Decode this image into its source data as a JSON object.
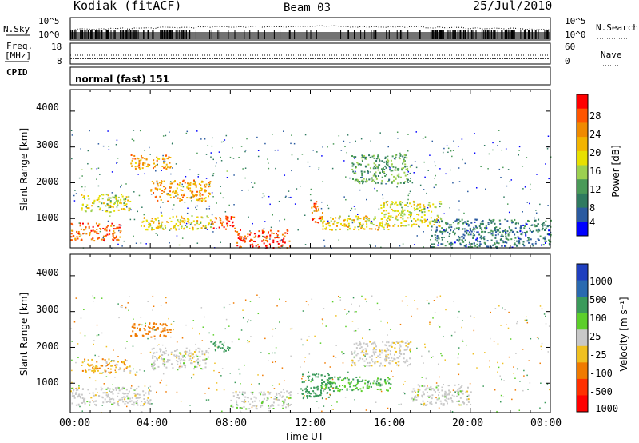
{
  "header": {
    "station": "Kodiak (fitACF)",
    "beam": "Beam 03",
    "date": "25/Jul/2010"
  },
  "status": {
    "nsky_label": "N.Sky",
    "nsky_ticks": [
      "10^5",
      "10^0"
    ],
    "nsearch_label": "N.Search",
    "nsearch_ticks": [
      "10^5",
      "10^0"
    ],
    "freq_label_1": "Freq.",
    "freq_label_2": "[MHz]",
    "freq_ticks": [
      "18",
      "8"
    ],
    "nave_label": "Nave",
    "nave_ticks": [
      "60",
      "0"
    ],
    "cpid_label": "CPID",
    "cpid_value": "normal (fast) 151"
  },
  "axes": {
    "x_ticks": [
      "00:00",
      "04:00",
      "08:00",
      "12:00",
      "16:00",
      "20:00",
      "00:00"
    ],
    "x_label": "Time UT",
    "y_label": "Slant Range [km]",
    "y_ticks": [
      "4000",
      "3000",
      "2000",
      "1000"
    ]
  },
  "power_colorbar": {
    "label": "Power [dB]",
    "ticks": [
      "28",
      "24",
      "20",
      "16",
      "12",
      "8",
      "4"
    ],
    "colors": [
      "#ff0000",
      "#ff5500",
      "#f08a00",
      "#f2b400",
      "#e8e000",
      "#9cd050",
      "#4a9a58",
      "#2f7a60",
      "#2a5aa0",
      "#0000ff"
    ]
  },
  "velocity_colorbar": {
    "label": "Velocity [m s⁻¹]",
    "ticks": [
      "1000",
      "500",
      "100",
      "25",
      "-25",
      "-100",
      "-500",
      "-1000"
    ],
    "colors": [
      "#1f3fbf",
      "#2a6ab0",
      "#3a9a5a",
      "#5ccf2a",
      "#c8c8c8",
      "#f0c020",
      "#f07a00",
      "#ff3000",
      "#ff0000"
    ]
  },
  "chart_data": [
    {
      "type": "heatmap",
      "title": "Power",
      "xlabel": "Time UT",
      "ylabel": "Slant Range [km]",
      "xlim": [
        0,
        24
      ],
      "ylim": [
        180,
        4600
      ],
      "zlabel": "Power [dB]",
      "zlim": [
        0,
        30
      ],
      "blobs": [
        {
          "t": [
            0.0,
            2.5
          ],
          "r": [
            400,
            900
          ],
          "p": 26
        },
        {
          "t": [
            0.5,
            3.0
          ],
          "r": [
            1200,
            1700
          ],
          "p": 16
        },
        {
          "t": [
            3.0,
            5.0
          ],
          "r": [
            2400,
            2800
          ],
          "p": 22
        },
        {
          "t": [
            4.0,
            7.0
          ],
          "r": [
            1500,
            2100
          ],
          "p": 22
        },
        {
          "t": [
            3.5,
            7.0
          ],
          "r": [
            700,
            1100
          ],
          "p": 18
        },
        {
          "t": [
            7.0,
            8.2
          ],
          "r": [
            700,
            1100
          ],
          "p": 26
        },
        {
          "t": [
            8.2,
            11.0
          ],
          "r": [
            200,
            700
          ],
          "p": 28
        },
        {
          "t": [
            12.0,
            12.6
          ],
          "r": [
            900,
            1500
          ],
          "p": 26
        },
        {
          "t": [
            12.5,
            16.0
          ],
          "r": [
            700,
            1100
          ],
          "p": 18
        },
        {
          "t": [
            14.0,
            17.0
          ],
          "r": [
            2000,
            2800
          ],
          "p": 10
        },
        {
          "t": [
            15.5,
            18.5
          ],
          "r": [
            800,
            1500
          ],
          "p": 16
        },
        {
          "t": [
            18.0,
            24.0
          ],
          "r": [
            200,
            1000
          ],
          "p": 6
        }
      ]
    },
    {
      "type": "heatmap",
      "title": "Velocity",
      "xlabel": "Time UT",
      "ylabel": "Slant Range [km]",
      "xlim": [
        0,
        24
      ],
      "ylim": [
        180,
        4600
      ],
      "zlabel": "Velocity [m s⁻¹]",
      "zlim": [
        -1000,
        1000
      ],
      "blobs": [
        {
          "t": [
            0.0,
            4.0
          ],
          "r": [
            400,
            900
          ],
          "v": 0
        },
        {
          "t": [
            0.5,
            3.0
          ],
          "r": [
            1300,
            1700
          ],
          "v": -50
        },
        {
          "t": [
            3.0,
            5.0
          ],
          "r": [
            2300,
            2700
          ],
          "v": -120
        },
        {
          "t": [
            4.0,
            7.0
          ],
          "r": [
            1400,
            2000
          ],
          "v": 0
        },
        {
          "t": [
            7.0,
            8.0
          ],
          "r": [
            1900,
            2200
          ],
          "v": 150
        },
        {
          "t": [
            8.0,
            11.0
          ],
          "r": [
            300,
            800
          ],
          "v": 0
        },
        {
          "t": [
            11.5,
            13.0
          ],
          "r": [
            600,
            1300
          ],
          "v": 120
        },
        {
          "t": [
            12.5,
            16.0
          ],
          "r": [
            800,
            1200
          ],
          "v": 60
        },
        {
          "t": [
            14.0,
            17.0
          ],
          "r": [
            1500,
            2200
          ],
          "v": -10
        },
        {
          "t": [
            17.0,
            20.0
          ],
          "r": [
            400,
            1000
          ],
          "v": 0
        }
      ]
    }
  ]
}
